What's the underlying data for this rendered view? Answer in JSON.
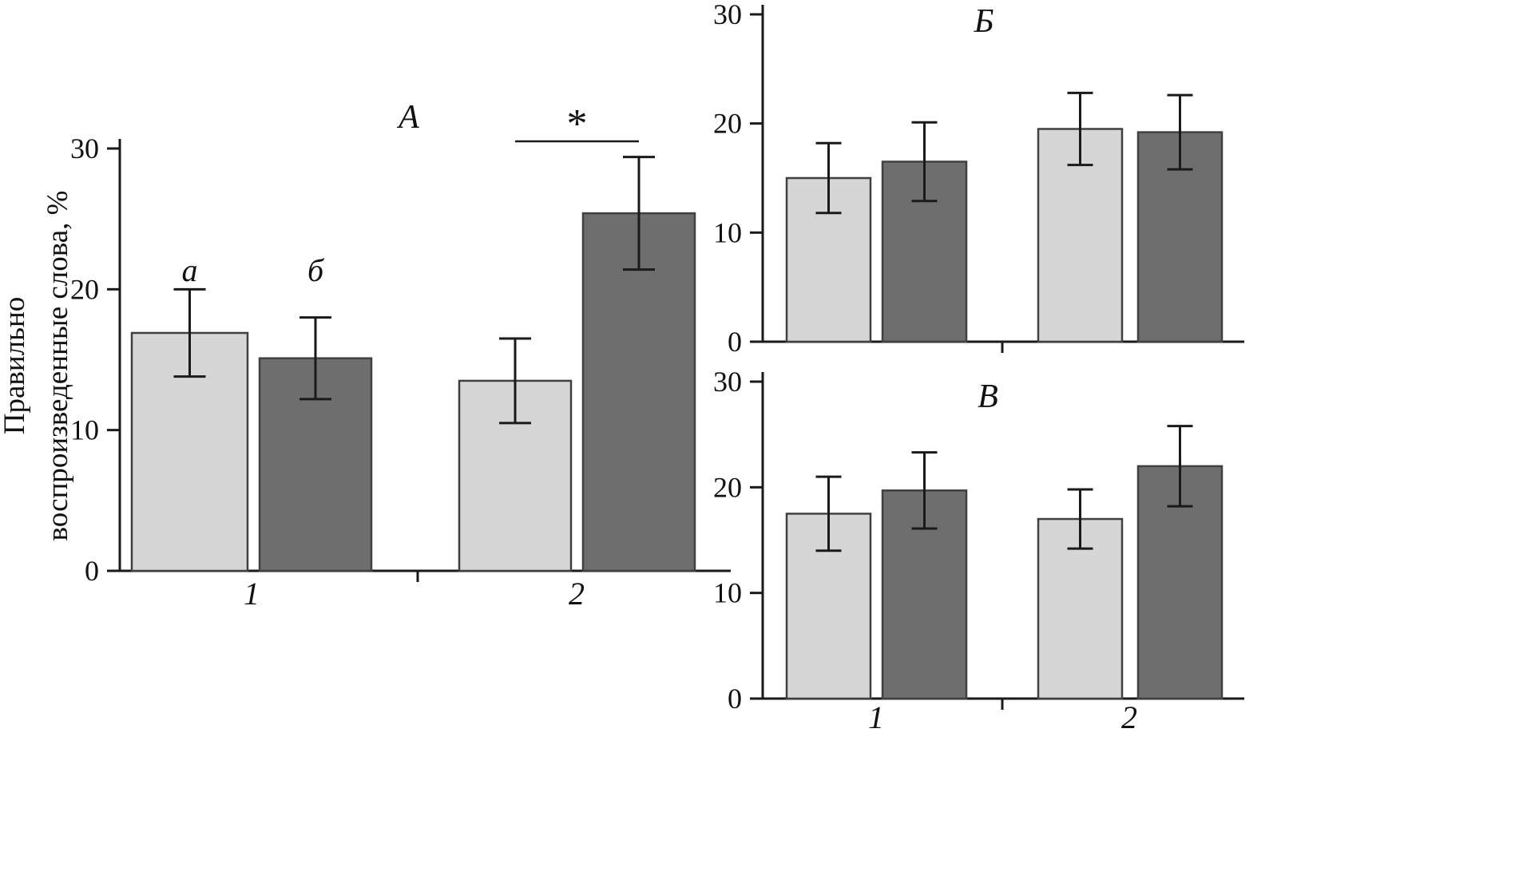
{
  "figure": {
    "ylabel_line1": "Правильно",
    "ylabel_line2": "воспроизведенные слова, %",
    "colors": {
      "light_bar": "#d6d6d6",
      "dark_bar": "#6e6e6e",
      "bar_outline": "#404040",
      "axis": "#1a1a1a"
    }
  },
  "chart_data": [
    {
      "id": "A",
      "type": "bar",
      "panel_label": "А",
      "categories": [
        "1",
        "2"
      ],
      "category_labels_visible": true,
      "ylim": [
        0,
        30
      ],
      "yticks": [
        0,
        10,
        20,
        30
      ],
      "grid": false,
      "legend": "none",
      "series": [
        {
          "name": "а (light)",
          "values": [
            16.9,
            13.5
          ],
          "errors": [
            3.1,
            3.0
          ]
        },
        {
          "name": "б (dark)",
          "values": [
            15.1,
            25.4
          ],
          "errors": [
            2.9,
            4.0
          ]
        }
      ],
      "bar_annotations": [
        {
          "text": "а",
          "group": 0,
          "series": 0
        },
        {
          "text": "б",
          "group": 0,
          "series": 1
        }
      ],
      "significance": {
        "text": "*",
        "group": 1,
        "from_series": 0,
        "to_series": 1
      }
    },
    {
      "id": "B",
      "type": "bar",
      "panel_label": "Б",
      "categories": [
        "1",
        "2"
      ],
      "category_labels_visible": false,
      "ylim": [
        0,
        30
      ],
      "yticks": [
        0,
        10,
        20,
        30
      ],
      "grid": false,
      "legend": "none",
      "series": [
        {
          "name": "light",
          "values": [
            15.0,
            19.5
          ],
          "errors": [
            3.2,
            3.3
          ]
        },
        {
          "name": "dark",
          "values": [
            16.5,
            19.2
          ],
          "errors": [
            3.6,
            3.4
          ]
        }
      ]
    },
    {
      "id": "V",
      "type": "bar",
      "panel_label": "В",
      "categories": [
        "1",
        "2"
      ],
      "category_labels_visible": true,
      "ylim": [
        0,
        30
      ],
      "yticks": [
        0,
        10,
        20,
        30
      ],
      "grid": false,
      "legend": "none",
      "series": [
        {
          "name": "light",
          "values": [
            17.5,
            17.0
          ],
          "errors": [
            3.5,
            2.8
          ]
        },
        {
          "name": "dark",
          "values": [
            19.7,
            22.0
          ],
          "errors": [
            3.6,
            3.8
          ]
        }
      ]
    }
  ]
}
